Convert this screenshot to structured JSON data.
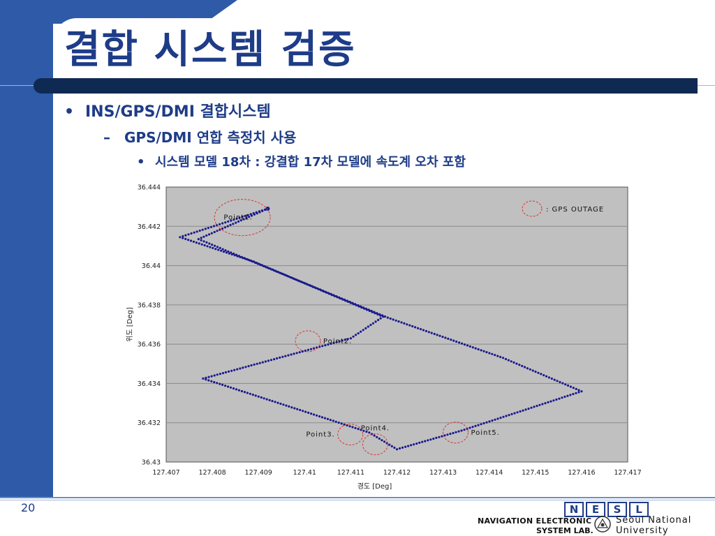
{
  "slide": {
    "title": "결합 시스템 검증",
    "bullet1_prefix": "•",
    "bullet1": "INS/GPS/DMI 결합시스템",
    "bullet2_prefix": "–",
    "bullet2": "GPS/DMI 연합 측정치 사용",
    "bullet3_prefix": "•",
    "bullet3": "시스템 모델 18차 : 강결합 17차 모델에 속도계 오차 포함",
    "page_number": "20"
  },
  "footer": {
    "lab_letters": [
      "N",
      "E",
      "S",
      "L"
    ],
    "lab_name_line1": "NAVIGATION ELECTRONIC",
    "lab_name_line2": "SYSTEM LAB.",
    "univ_line1": "Seoul National",
    "univ_line2": "University"
  },
  "colors": {
    "band": "#2e5aa8",
    "title": "#1e3c87",
    "plot_bg": "#c0c0c0",
    "track": "#1a1a8c",
    "outage": "#e03030"
  },
  "chart_data": {
    "type": "scatter",
    "xlabel": "경도 [Deg]",
    "ylabel": "위도 [Deg]",
    "xlim": [
      127.407,
      127.417
    ],
    "ylim": [
      36.43,
      36.444
    ],
    "x_ticks": [
      "127.407",
      "127.408",
      "127.409",
      "127.41",
      "127.411",
      "127.412",
      "127.413",
      "127.414",
      "127.415",
      "127.416",
      "127.417"
    ],
    "y_ticks": [
      "36.444",
      "36.442",
      "36.44",
      "36.438",
      "36.436",
      "36.434",
      "36.432",
      "36.43"
    ],
    "grid": true,
    "legend": {
      "label": ": GPS OUTAGE",
      "placement": "top-right"
    },
    "track": [
      {
        "lon": 127.4092,
        "lat": 36.4429
      },
      {
        "lon": 127.4073,
        "lat": 36.44145
      },
      {
        "lon": 127.4089,
        "lat": 36.4402
      },
      {
        "lon": 127.4117,
        "lat": 36.4374
      },
      {
        "lon": 127.411,
        "lat": 36.4363
      },
      {
        "lon": 127.4078,
        "lat": 36.43425
      },
      {
        "lon": 127.4114,
        "lat": 36.4315
      },
      {
        "lon": 127.412,
        "lat": 36.43065
      },
      {
        "lon": 127.4134,
        "lat": 36.4316
      },
      {
        "lon": 127.416,
        "lat": 36.4336
      },
      {
        "lon": 127.4143,
        "lat": 36.4353
      },
      {
        "lon": 127.4118,
        "lat": 36.43735
      },
      {
        "lon": 127.4077,
        "lat": 36.44135
      },
      {
        "lon": 127.4092,
        "lat": 36.4429
      }
    ],
    "outages": [
      {
        "label": "Point1.",
        "lon": 127.40865,
        "lat": 36.44245,
        "label_side": "inside"
      },
      {
        "label": "Point2.",
        "lon": 127.41007,
        "lat": 36.43615,
        "label_side": "right"
      },
      {
        "label": "Point3.",
        "lon": 127.41099,
        "lat": 36.4314,
        "label_side": "left"
      },
      {
        "label": "Point4.",
        "lon": 127.41153,
        "lat": 36.4309,
        "label_side": "above"
      },
      {
        "label": "Point5.",
        "lon": 127.41327,
        "lat": 36.4315,
        "label_side": "right"
      }
    ]
  }
}
